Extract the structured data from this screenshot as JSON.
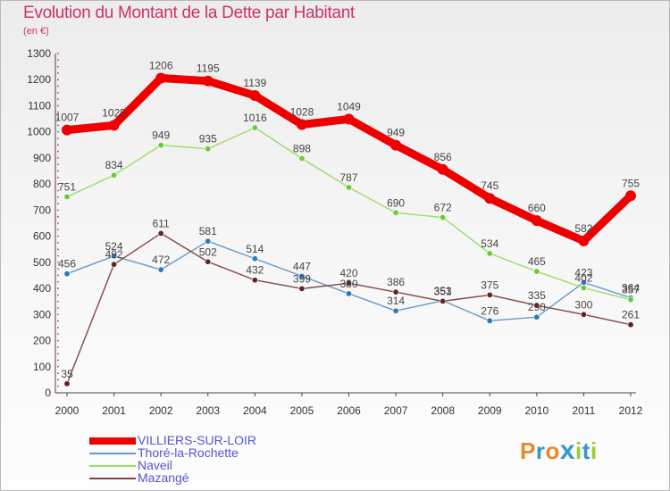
{
  "header": {
    "title": "Evolution du Montant de la Dette par Habitant",
    "subtitle": "(en €)"
  },
  "brand": {
    "letters": [
      "P",
      "r",
      "o",
      "x",
      "i",
      "t",
      "i"
    ],
    "colors": [
      "#e8892b",
      "#3399cc",
      "#e8892b",
      "#3399cc",
      "#99cc33",
      "#3399cc",
      "#99cc33"
    ]
  },
  "chart_data": {
    "type": "line",
    "categories": [
      "2000",
      "2001",
      "2002",
      "2003",
      "2004",
      "2005",
      "2006",
      "2007",
      "2008",
      "2009",
      "2010",
      "2011",
      "2012"
    ],
    "ylim": [
      0,
      1300
    ],
    "yticks": [
      0,
      100,
      200,
      300,
      400,
      500,
      600,
      700,
      800,
      900,
      1000,
      1100,
      1200,
      1300
    ],
    "grid": false,
    "legend_position": "bottom-left",
    "series": [
      {
        "name": "VILLIERS-SUR-LOIR",
        "color": "#ee0000",
        "marker_color": "#ee0000",
        "emphasis": true,
        "values": [
          1007,
          1025,
          1206,
          1195,
          1139,
          1028,
          1049,
          949,
          856,
          745,
          660,
          582,
          755
        ]
      },
      {
        "name": "Thoré-la-Rochette",
        "color": "#6699cc",
        "marker_color": "#3377bb",
        "emphasis": false,
        "values": [
          456,
          524,
          472,
          581,
          514,
          447,
          380,
          314,
          353,
          276,
          290,
          423,
          364
        ]
      },
      {
        "name": "Naveil",
        "color": "#99dd66",
        "marker_color": "#66cc33",
        "emphasis": false,
        "values": [
          751,
          834,
          949,
          935,
          1016,
          898,
          787,
          690,
          672,
          534,
          465,
          402,
          357
        ]
      },
      {
        "name": "Mazangé",
        "color": "#884444",
        "marker_color": "#662222",
        "emphasis": false,
        "values": [
          35,
          492,
          611,
          502,
          432,
          399,
          420,
          386,
          351,
          375,
          335,
          300,
          261
        ]
      }
    ]
  }
}
